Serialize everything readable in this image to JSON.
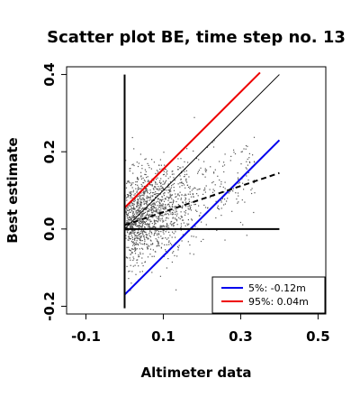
{
  "chart_data": {
    "type": "scatter",
    "title": "Scatter plot BE, time step no. 13",
    "xlabel": "Altimeter data",
    "ylabel": "Best estimate",
    "xlim": [
      -0.15,
      0.52
    ],
    "ylim": [
      -0.22,
      0.42
    ],
    "x_ticks": [
      -0.1,
      0.1,
      0.3,
      0.5
    ],
    "x_tick_labels": [
      "-0.1",
      "0.1",
      "0.3",
      "0.5"
    ],
    "y_ticks": [
      -0.2,
      0.0,
      0.2,
      0.4
    ],
    "y_tick_labels": [
      "-0.2",
      "0.0",
      "0.2",
      "0.4"
    ],
    "grid": false,
    "legend_position": "bottom-right",
    "series": [
      {
        "name": "5%: -0.12m",
        "color": "#0000ee",
        "style": "solid",
        "x": [
          0.0,
          0.4
        ],
        "y": [
          -0.17,
          0.23
        ]
      },
      {
        "name": "95%:  0.04m",
        "color": "#ee0000",
        "style": "solid",
        "x": [
          0.0,
          0.35
        ],
        "y": [
          0.055,
          0.405
        ]
      },
      {
        "color": "#000000",
        "style": "solid-thin",
        "x": [
          0.0,
          0.4
        ],
        "y": [
          0.0,
          0.4
        ]
      },
      {
        "color": "#000000",
        "style": "dashed",
        "x": [
          0.0,
          0.4
        ],
        "y": [
          0.01,
          0.145
        ]
      },
      {
        "color": "#000000",
        "style": "solid-thick",
        "x": [
          0.0,
          0.4
        ],
        "y": [
          0.0,
          0.0
        ]
      },
      {
        "color": "#000000",
        "style": "solid-thick",
        "x": [
          0.0,
          0.0
        ],
        "y": [
          -0.205,
          0.4
        ]
      }
    ],
    "scatter": {
      "count": 1500,
      "point_color": "#555555",
      "x_range": [
        0.0,
        0.45
      ],
      "y_range": [
        -0.2,
        0.3
      ]
    }
  }
}
